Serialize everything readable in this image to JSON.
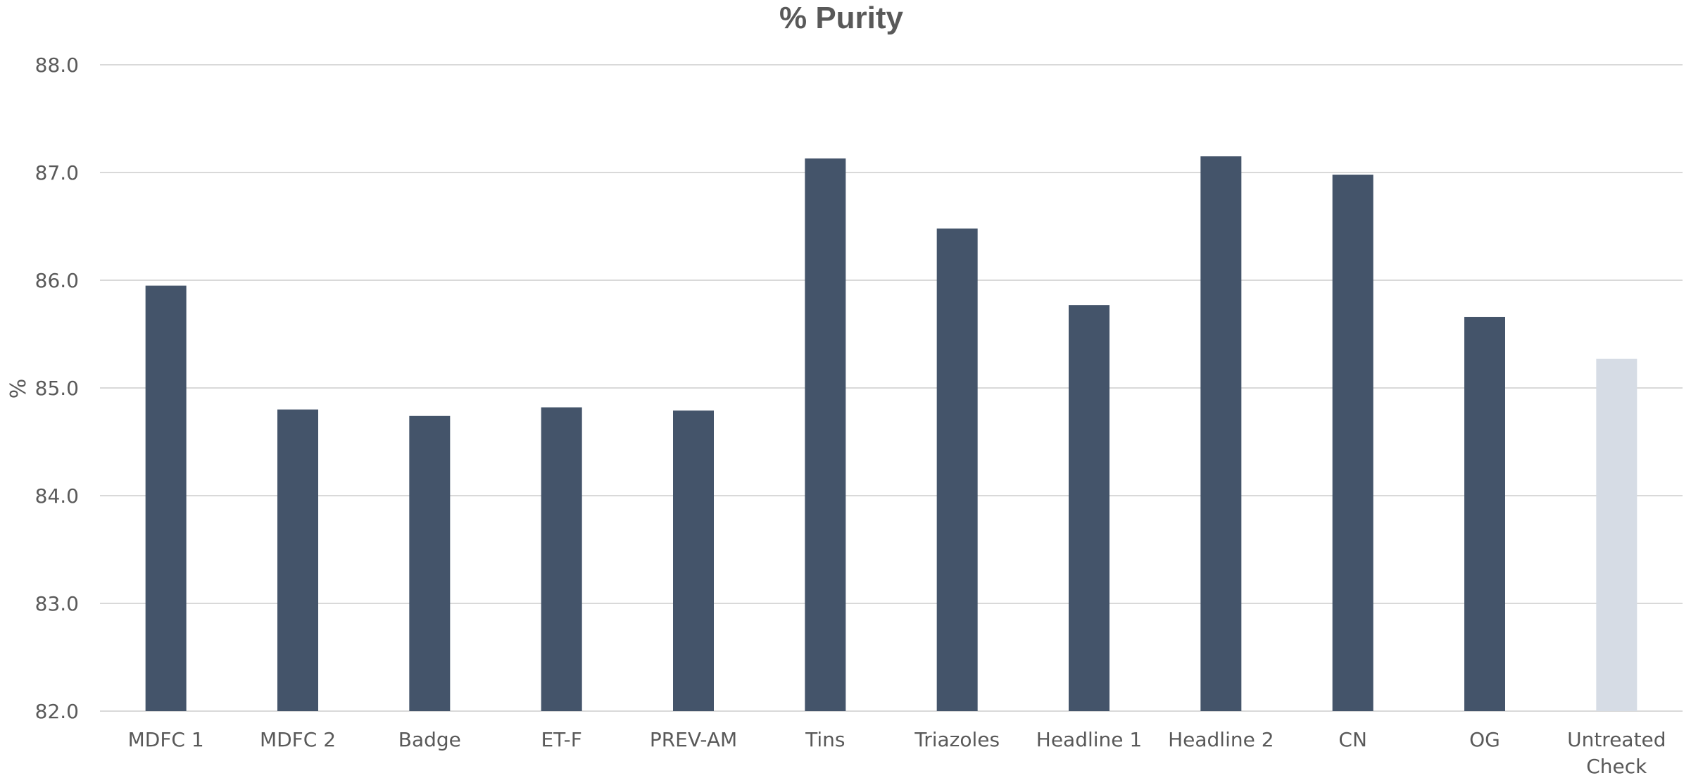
{
  "chart_data": {
    "type": "bar",
    "title": "% Purity",
    "xlabel": "",
    "ylabel": "%",
    "ylim": [
      82.0,
      88.0
    ],
    "yticks": [
      "82.0",
      "83.0",
      "84.0",
      "85.0",
      "86.0",
      "87.0",
      "88.0"
    ],
    "grid": true,
    "legend": "none",
    "categories": [
      [
        "MDFC 1"
      ],
      [
        "MDFC 2"
      ],
      [
        "Badge"
      ],
      [
        "ET-F"
      ],
      [
        "PREV-AM"
      ],
      [
        "Tins"
      ],
      [
        "Triazoles"
      ],
      [
        "Headline 1"
      ],
      [
        "Headline 2"
      ],
      [
        "CN"
      ],
      [
        "OG"
      ],
      [
        "Untreated",
        "Check"
      ]
    ],
    "values": [
      85.95,
      84.8,
      84.74,
      84.82,
      84.79,
      87.13,
      86.48,
      85.77,
      87.15,
      86.98,
      85.66,
      85.27
    ],
    "bar_color": "#44546a",
    "highlight_color": "#d6dce5",
    "highlight_index": 11
  }
}
